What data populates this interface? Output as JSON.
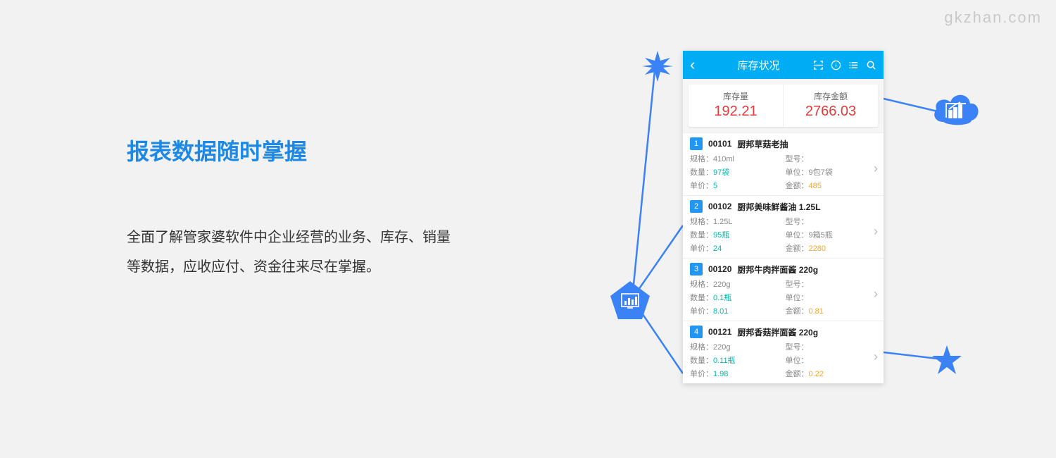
{
  "watermark": "gkzhan.com",
  "headline": "报表数据随时掌握",
  "body": "全面了解管家婆软件中企业经营的业务、库存、销量等数据，应收应付、资金往来尽在掌握。",
  "phone": {
    "title": "库存状况",
    "summary": [
      {
        "label": "库存量",
        "value": "192.21"
      },
      {
        "label": "库存金额",
        "value": "2766.03"
      }
    ],
    "field_labels": {
      "spec": "规格：",
      "model": "型号：",
      "qty": "数量：",
      "unit": "单位：",
      "price": "单价：",
      "amount": "金额："
    },
    "items": [
      {
        "badge": "1",
        "code": "00101",
        "name": "厨邦草菇老抽",
        "spec": "410ml",
        "model": "",
        "qty": "97袋",
        "unit": "9包7袋",
        "price": "5",
        "amount": "485"
      },
      {
        "badge": "2",
        "code": "00102",
        "name": "厨邦美味鲜酱油 1.25L",
        "spec": "1.25L",
        "model": "",
        "qty": "95瓶",
        "unit": "9箱5瓶",
        "price": "24",
        "amount": "2280"
      },
      {
        "badge": "3",
        "code": "00120",
        "name": "厨邦牛肉拌面酱 220g",
        "spec": "220g",
        "model": "",
        "qty": "0.1瓶",
        "unit": "",
        "price": "8.01",
        "amount": "0.81"
      },
      {
        "badge": "4",
        "code": "00121",
        "name": "厨邦香菇拌面酱 220g",
        "spec": "220g",
        "model": "",
        "qty": "0.11瓶",
        "unit": "",
        "price": "1.98",
        "amount": "0.22"
      }
    ]
  },
  "colors": {
    "accent": "#3b82f6",
    "header": "#00acf4",
    "red": "#e43b3b",
    "teal": "#00b8a9",
    "orange": "#f5a623"
  }
}
